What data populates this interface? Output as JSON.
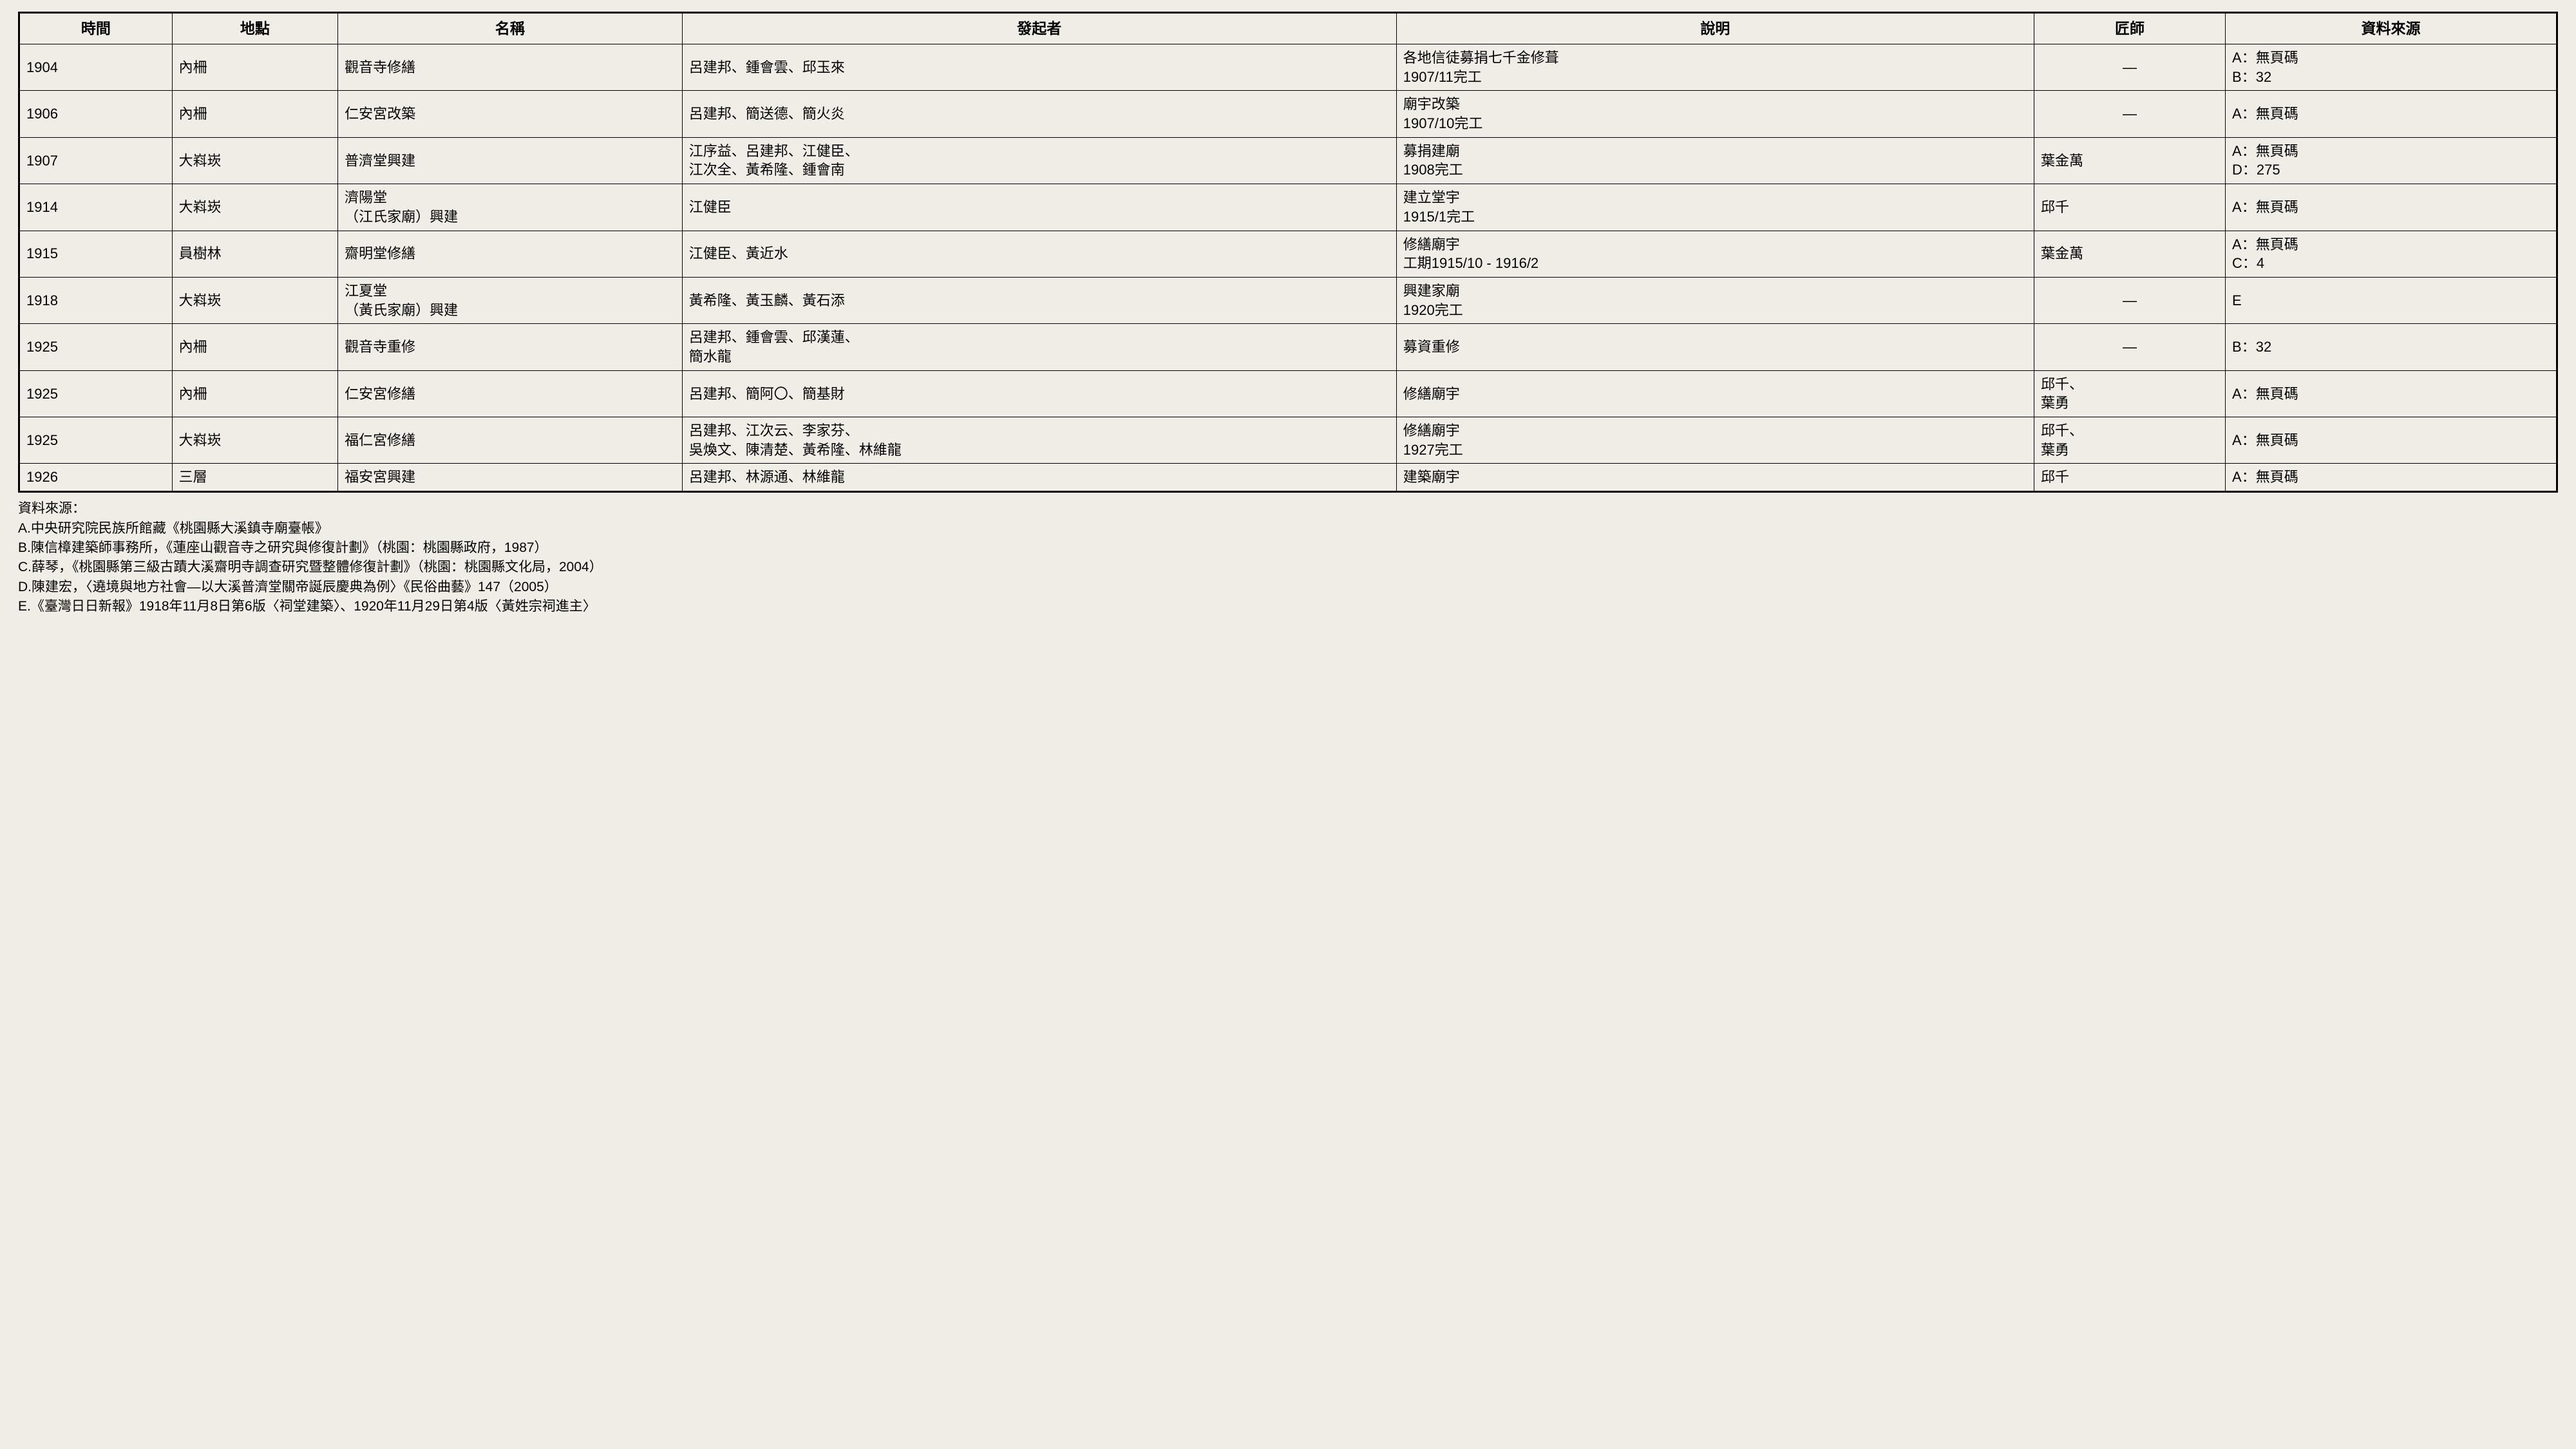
{
  "columns": [
    "時間",
    "地點",
    "名稱",
    "發起者",
    "說明",
    "匠師",
    "資料來源"
  ],
  "rows": [
    {
      "time": "1904",
      "place": "內柵",
      "name": "觀音寺修繕",
      "initiator": "呂建邦、鍾會雲、邱玉來",
      "desc": "各地信徒募捐七千金修葺\n1907/11完工",
      "master": "—",
      "source": "A：無頁碼\nB：32"
    },
    {
      "time": "1906",
      "place": "內柵",
      "name": "仁安宮改築",
      "initiator": "呂建邦、簡送德、簡火炎",
      "desc": "廟宇改築\n1907/10完工",
      "master": "—",
      "source": "A：無頁碼"
    },
    {
      "time": "1907",
      "place": "大嵙崁",
      "name": "普濟堂興建",
      "initiator": "江序益、呂建邦、江健臣、\n江次全、黃希隆、鍾會南",
      "desc": "募捐建廟\n1908完工",
      "master": "葉金萬",
      "source": "A：無頁碼\nD：275"
    },
    {
      "time": "1914",
      "place": "大嵙崁",
      "name": "濟陽堂\n（江氏家廟）興建",
      "initiator": "江健臣",
      "desc": "建立堂宇\n1915/1完工",
      "master": "邱千",
      "source": "A：無頁碼"
    },
    {
      "time": "1915",
      "place": "員樹林",
      "name": "齋明堂修繕",
      "initiator": "江健臣、黃近水",
      "desc": "修繕廟宇\n工期1915/10 - 1916/2",
      "master": "葉金萬",
      "source": "A：無頁碼\nC：4"
    },
    {
      "time": "1918",
      "place": "大嵙崁",
      "name": "江夏堂\n（黃氏家廟）興建",
      "initiator": "黃希隆、黃玉麟、黃石添",
      "desc": "興建家廟\n1920完工",
      "master": "—",
      "source": "E"
    },
    {
      "time": "1925",
      "place": "內柵",
      "name": "觀音寺重修",
      "initiator": "呂建邦、鍾會雲、邱漢蓮、\n簡水龍",
      "desc": "募資重修",
      "master": "—",
      "source": "B：32"
    },
    {
      "time": "1925",
      "place": "內柵",
      "name": "仁安宮修繕",
      "initiator": "呂建邦、簡阿〇、簡基財",
      "desc": "修繕廟宇",
      "master": "邱千、\n葉勇",
      "source": "A：無頁碼"
    },
    {
      "time": "1925",
      "place": "大嵙崁",
      "name": "福仁宮修繕",
      "initiator": "呂建邦、江次云、李家芬、\n吳煥文、陳清楚、黃希隆、林維龍",
      "desc": "修繕廟宇\n1927完工",
      "master": "邱千、\n葉勇",
      "source": "A：無頁碼"
    },
    {
      "time": "1926",
      "place": "三層",
      "name": "福安宮興建",
      "initiator": "呂建邦、林源通、林維龍",
      "desc": "建築廟宇",
      "master": "邱千",
      "source": "A：無頁碼"
    }
  ],
  "footer": {
    "title": "資料來源：",
    "lines": [
      "A.中央研究院民族所館藏《桃園縣大溪鎮寺廟臺帳》",
      "B.陳信樟建築師事務所，《蓮座山觀音寺之研究與修復計劃》（桃園：桃園縣政府，1987）",
      "C.薛琴，《桃園縣第三級古蹟大溪齋明寺調查研究暨整體修復計劃》（桃園：桃園縣文化局，2004）",
      "D.陳建宏，〈遶境與地方社會—以大溪普濟堂關帝誕辰慶典為例〉《民俗曲藝》147（2005）",
      "E.《臺灣日日新報》1918年11月8日第6版〈祠堂建築〉、1920年11月29日第4版〈黃姓宗祠進主〉"
    ]
  }
}
